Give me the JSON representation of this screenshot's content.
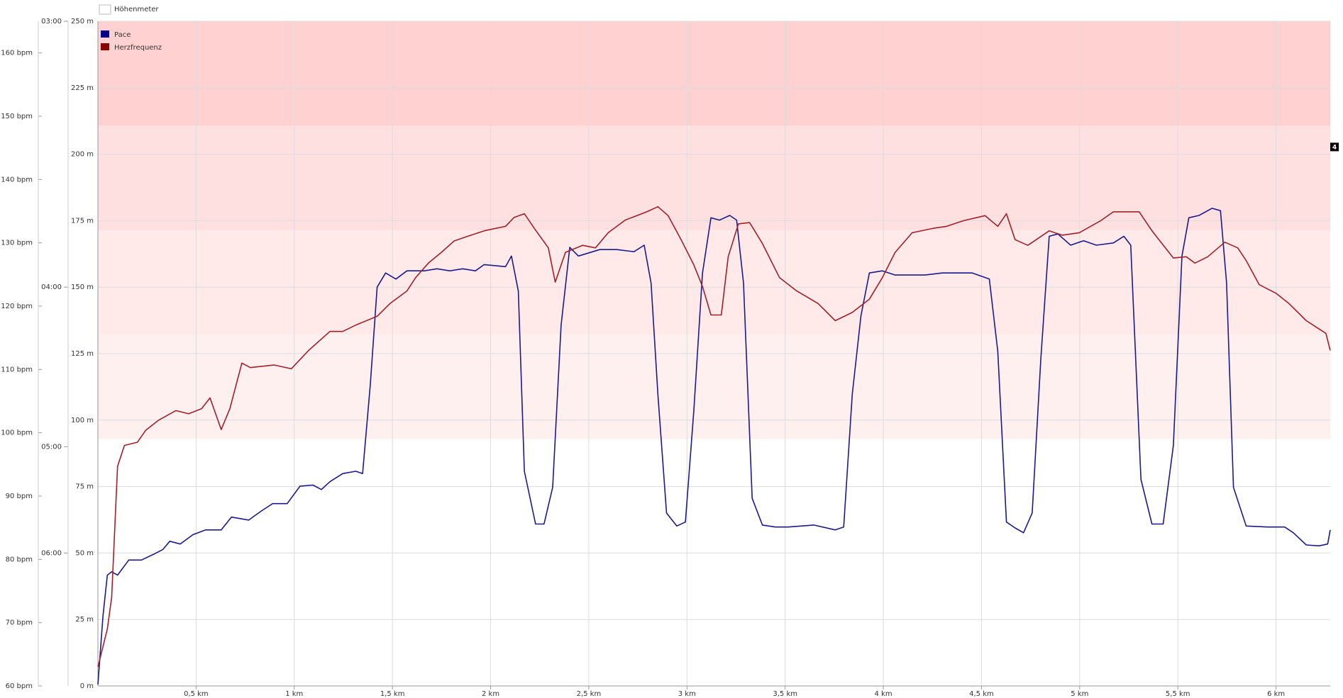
{
  "chart_data": {
    "type": "line",
    "xlim": [
      0,
      6.276
    ],
    "xticks": [
      {
        "value": 0.5,
        "label": "0,5 km"
      },
      {
        "value": 1,
        "label": "1 km"
      },
      {
        "value": 1.5,
        "label": "1,5 km"
      },
      {
        "value": 2,
        "label": "2 km"
      },
      {
        "value": 2.5,
        "label": "2,5 km"
      },
      {
        "value": 3,
        "label": "3 km"
      },
      {
        "value": 3.5,
        "label": "3,5 km"
      },
      {
        "value": 4,
        "label": "4 km"
      },
      {
        "value": 4.5,
        "label": "4,5 km"
      },
      {
        "value": 5,
        "label": "5 km"
      },
      {
        "value": 5.5,
        "label": "5,5 km"
      },
      {
        "value": 6,
        "label": "6 km"
      }
    ],
    "ylim": [
      0,
      250
    ],
    "yticks": [
      {
        "value": 0,
        "label": "0 m"
      },
      {
        "value": 25,
        "label": "25 m"
      },
      {
        "value": 50,
        "label": "50 m"
      },
      {
        "value": 75,
        "label": "75 m"
      },
      {
        "value": 100,
        "label": "100 m"
      },
      {
        "value": 125,
        "label": "125 m"
      },
      {
        "value": 150,
        "label": "150 m"
      },
      {
        "value": 175,
        "label": "175 m"
      },
      {
        "value": 200,
        "label": "200 m"
      },
      {
        "value": 225,
        "label": "225 m"
      },
      {
        "value": 250,
        "label": "250 m"
      }
    ],
    "y2lim": [
      60,
      165
    ],
    "y2ticks": [
      {
        "value": 60,
        "label": "60 bpm"
      },
      {
        "value": 70,
        "label": "70 bpm"
      },
      {
        "value": 80,
        "label": "80 bpm"
      },
      {
        "value": 90,
        "label": "90 bpm"
      },
      {
        "value": 100,
        "label": "100 bpm"
      },
      {
        "value": 110,
        "label": "110 bpm"
      },
      {
        "value": 120,
        "label": "120 bpm"
      },
      {
        "value": 130,
        "label": "130 bpm"
      },
      {
        "value": 140,
        "label": "140 bpm"
      },
      {
        "value": 150,
        "label": "150 bpm"
      },
      {
        "value": 160,
        "label": "160 bpm"
      }
    ],
    "y3lim": [
      8,
      3
    ],
    "y3scale": "reciprocal",
    "y3ticks": [
      {
        "value": 3,
        "label": "03:00"
      },
      {
        "value": 4,
        "label": "04:00"
      },
      {
        "value": 5,
        "label": "05:00"
      },
      {
        "value": 6,
        "label": "06:00"
      }
    ],
    "grid": true,
    "zones": [
      {
        "from": 99,
        "to": 115.5,
        "color": "#fff0f0"
      },
      {
        "from": 115.5,
        "to": 132,
        "color": "#ffe9e9"
      },
      {
        "from": 132,
        "to": 148.5,
        "color": "#ffe0e1",
        "label": "4"
      },
      {
        "from": 148.5,
        "to": 165,
        "color": "#ffd1d1"
      }
    ],
    "series": [
      {
        "name": "Höhenmeter",
        "color": "#ffffff",
        "axis": "y",
        "x": [],
        "values": []
      },
      {
        "name": "Pace",
        "color": "#1a1a8c",
        "legend_color": "#00008b",
        "axis": "y3",
        "x": [
          0,
          0.026,
          0.048,
          0.07,
          0.1,
          0.157,
          0.222,
          0.288,
          0.331,
          0.366,
          0.419,
          0.484,
          0.549,
          0.628,
          0.68,
          0.768,
          0.833,
          0.89,
          0.964,
          1.029,
          1.095,
          1.138,
          1.182,
          1.247,
          1.313,
          1.348,
          1.387,
          1.422,
          1.465,
          1.518,
          1.574,
          1.662,
          1.727,
          1.792,
          1.858,
          1.923,
          1.967,
          2.076,
          2.106,
          2.141,
          2.172,
          2.229,
          2.272,
          2.316,
          2.359,
          2.403,
          2.447,
          2.556,
          2.643,
          2.73,
          2.782,
          2.817,
          2.852,
          2.896,
          2.948,
          2.992,
          3.035,
          3.079,
          3.122,
          3.166,
          3.218,
          3.253,
          3.288,
          3.332,
          3.384,
          3.45,
          3.515,
          3.646,
          3.755,
          3.798,
          3.842,
          3.886,
          3.929,
          3.995,
          4.06,
          4.213,
          4.3,
          4.453,
          4.54,
          4.583,
          4.627,
          4.671,
          4.714,
          4.758,
          4.802,
          4.845,
          4.889,
          4.954,
          5.02,
          5.085,
          5.172,
          5.225,
          5.26,
          5.312,
          5.368,
          5.425,
          5.477,
          5.521,
          5.556,
          5.608,
          5.674,
          5.717,
          5.748,
          5.783,
          5.848,
          5.957,
          6.044,
          6.088,
          6.154,
          6.219,
          6.263,
          6.276
        ],
        "values": [
          7.97,
          6.8,
          6.26,
          6.22,
          6.26,
          6.08,
          6.08,
          6.01,
          5.96,
          5.87,
          5.9,
          5.8,
          5.75,
          5.75,
          5.62,
          5.65,
          5.56,
          5.49,
          5.49,
          5.33,
          5.32,
          5.36,
          5.29,
          5.22,
          5.2,
          5.22,
          4.56,
          4.0,
          3.93,
          3.96,
          3.92,
          3.92,
          3.91,
          3.92,
          3.91,
          3.92,
          3.89,
          3.9,
          3.85,
          4.02,
          5.2,
          5.69,
          5.69,
          5.34,
          4.2,
          3.81,
          3.85,
          3.82,
          3.82,
          3.83,
          3.8,
          3.98,
          4.62,
          5.58,
          5.71,
          5.67,
          4.73,
          3.93,
          3.68,
          3.69,
          3.67,
          3.69,
          3.98,
          5.44,
          5.7,
          5.72,
          5.72,
          5.7,
          5.75,
          5.72,
          4.62,
          4.15,
          3.93,
          3.92,
          3.94,
          3.94,
          3.93,
          3.93,
          3.96,
          4.35,
          5.67,
          5.73,
          5.78,
          5.58,
          4.4,
          3.76,
          3.75,
          3.8,
          3.78,
          3.8,
          3.79,
          3.76,
          3.8,
          5.27,
          5.69,
          5.69,
          4.99,
          3.85,
          3.68,
          3.67,
          3.64,
          3.65,
          3.98,
          5.34,
          5.71,
          5.72,
          5.72,
          5.78,
          5.91,
          5.92,
          5.9,
          5.75
        ]
      },
      {
        "name": "Herzfrequenz",
        "color": "#a0202a",
        "legend_color": "#8b0000",
        "axis": "y2",
        "x": [
          0,
          0.048,
          0.07,
          0.1,
          0.135,
          0.201,
          0.244,
          0.31,
          0.397,
          0.462,
          0.528,
          0.571,
          0.628,
          0.672,
          0.733,
          0.776,
          0.898,
          0.985,
          1.073,
          1.182,
          1.247,
          1.313,
          1.422,
          1.487,
          1.574,
          1.618,
          1.683,
          1.749,
          1.814,
          1.88,
          1.967,
          2.076,
          2.119,
          2.172,
          2.229,
          2.294,
          2.329,
          2.381,
          2.468,
          2.534,
          2.599,
          2.686,
          2.795,
          2.852,
          2.904,
          2.97,
          3.035,
          3.079,
          3.122,
          3.175,
          3.21,
          3.262,
          3.319,
          3.384,
          3.471,
          3.559,
          3.668,
          3.755,
          3.842,
          3.929,
          3.995,
          4.06,
          4.147,
          4.256,
          4.322,
          4.409,
          4.518,
          4.583,
          4.627,
          4.671,
          4.736,
          4.845,
          4.911,
          4.998,
          5.107,
          5.172,
          5.303,
          5.368,
          5.477,
          5.543,
          5.587,
          5.652,
          5.739,
          5.805,
          5.848,
          5.914,
          6.001,
          6.066,
          6.154,
          6.219,
          6.254,
          6.276
        ],
        "values": [
          63,
          69,
          74,
          94.7,
          98,
          98.5,
          100.4,
          102,
          103.5,
          103,
          103.8,
          105.5,
          100.5,
          103.8,
          111,
          110.3,
          110.7,
          110.1,
          113,
          116,
          116,
          117,
          118.4,
          120.4,
          122.4,
          124.5,
          126.8,
          128.5,
          130.3,
          131,
          131.9,
          132.6,
          134,
          134.6,
          132,
          129.2,
          123.8,
          128.5,
          129.6,
          129.2,
          131.6,
          133.6,
          134.9,
          135.7,
          134.3,
          130.5,
          126.5,
          123.1,
          118.6,
          118.6,
          127.8,
          133,
          133.2,
          129.9,
          124.5,
          122.4,
          120.4,
          117.7,
          119,
          121.1,
          124.5,
          128.5,
          131.6,
          132.3,
          132.6,
          133.5,
          134.3,
          132.6,
          134.6,
          130.5,
          129.6,
          131.9,
          131.2,
          131.6,
          133.5,
          134.9,
          134.9,
          131.9,
          127.6,
          127.8,
          126.8,
          127.8,
          130.1,
          129.2,
          127.2,
          123.4,
          122,
          120.4,
          117.7,
          116.4,
          115.7,
          113
        ]
      }
    ]
  }
}
